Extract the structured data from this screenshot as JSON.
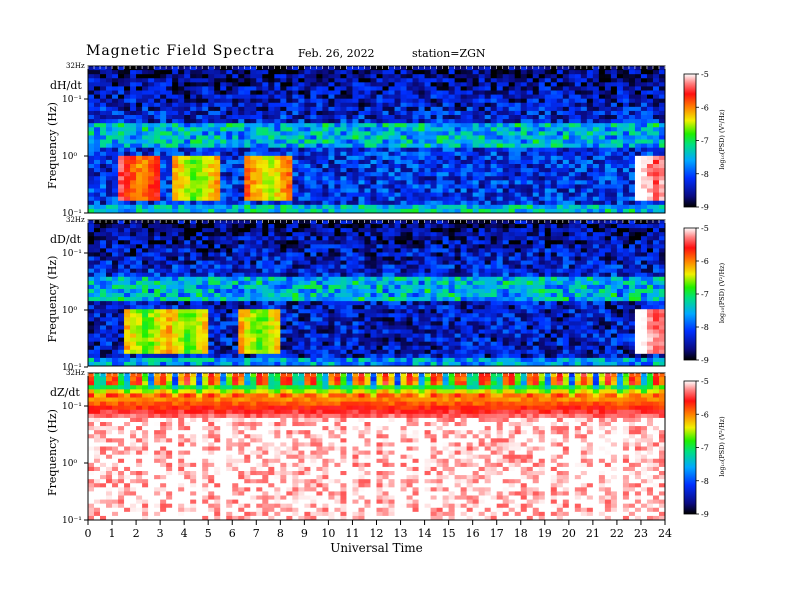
{
  "header": {
    "title": "Magnetic  Field  Spectra",
    "date": "Feb. 26, 2022",
    "station": "station=ZGN"
  },
  "chart_data": [
    {
      "type": "heatmap",
      "component": "dH/dt",
      "ylabel": "Frequency  (Hz)",
      "y_scale": "log",
      "yticks": [
        "10⁻¹",
        "10⁰",
        "10⁻¹"
      ],
      "ytick_top": "32Hz",
      "xlim": [
        0,
        24
      ],
      "colorbar": {
        "label": "log₁₀(PSD) (V²/Hz)",
        "range": [
          -9,
          -5
        ],
        "ticks": [
          "-5",
          "-6",
          "-7",
          "-8",
          "-9"
        ]
      },
      "background_level": -8.2,
      "low_band_level": -7.4,
      "hot_spots": [
        {
          "t": 2.2,
          "level": -6.3
        },
        {
          "t": 4.5,
          "level": -7.0
        },
        {
          "t": 7.5,
          "level": -6.8
        },
        {
          "t": 23.6,
          "level": -5.6
        }
      ]
    },
    {
      "type": "heatmap",
      "component": "dD/dt",
      "ylabel": "Frequency  (Hz)",
      "y_scale": "log",
      "yticks": [
        "10⁻¹",
        "10⁰",
        "10⁻¹"
      ],
      "ytick_top": "32Hz",
      "xlim": [
        0,
        24
      ],
      "colorbar": {
        "label": "log₁₀(PSD) (V²/Hz)",
        "range": [
          -9,
          -5
        ],
        "ticks": [
          "-5",
          "-6",
          "-7",
          "-8",
          "-9"
        ]
      },
      "background_level": -8.4,
      "low_band_level": -7.6,
      "hot_spots": [
        {
          "t": 2.4,
          "level": -7.0
        },
        {
          "t": 4.2,
          "level": -7.0
        },
        {
          "t": 7.2,
          "level": -7.0
        },
        {
          "t": 23.7,
          "level": -5.6
        }
      ]
    },
    {
      "type": "heatmap",
      "component": "dZ/dt",
      "ylabel": "Frequency  (Hz)",
      "y_scale": "log",
      "yticks": [
        "10⁻¹",
        "10⁰",
        "10⁻¹"
      ],
      "ytick_top": "32Hz",
      "xlim": [
        0,
        24
      ],
      "colorbar": {
        "label": "log₁₀(PSD) (V²/Hz)",
        "range": [
          -9,
          -5
        ],
        "ticks": [
          "-5",
          "-6",
          "-7",
          "-8",
          "-9"
        ]
      },
      "background_level": -5.2,
      "pulse_period_hours": 0.33,
      "hot_spots": []
    }
  ],
  "x_axis": {
    "label": "Universal Time",
    "ticks": [
      "0",
      "1",
      "2",
      "3",
      "4",
      "5",
      "6",
      "7",
      "8",
      "9",
      "10",
      "11",
      "12",
      "13",
      "14",
      "15",
      "16",
      "17",
      "18",
      "19",
      "20",
      "21",
      "22",
      "23",
      "24"
    ]
  }
}
